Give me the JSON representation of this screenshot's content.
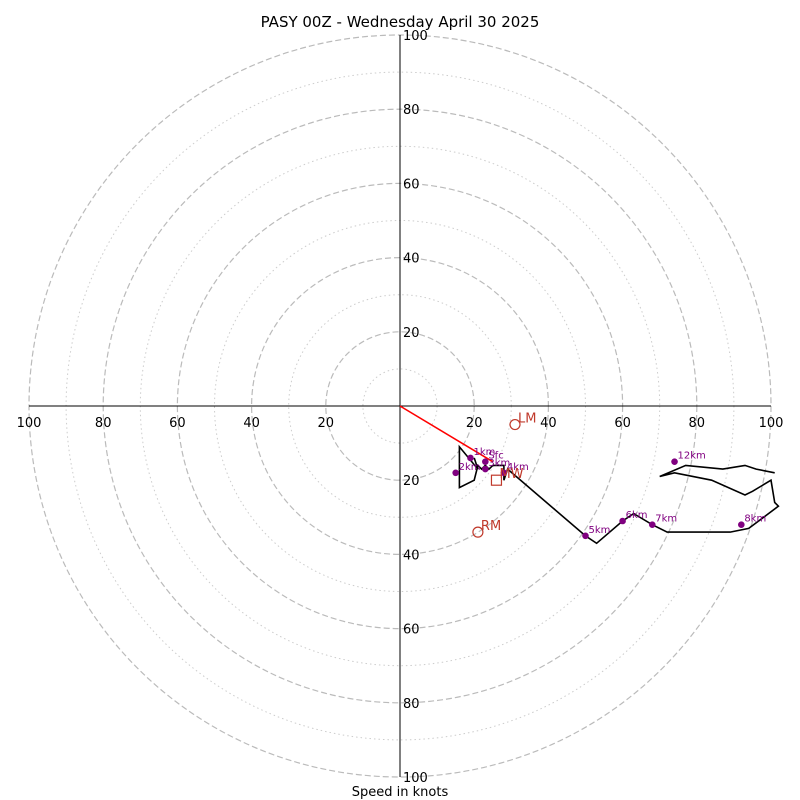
{
  "chart_data": {
    "type": "hodograph",
    "title": "PASY 00Z - Wednesday April 30 2025",
    "xlabel": "Speed in knots",
    "ring_ticks": [
      "100",
      "80",
      "60",
      "40",
      "20",
      "20",
      "40",
      "60",
      "80",
      "100"
    ],
    "y_ticks": [
      "100",
      "80",
      "60",
      "40",
      "20",
      "20",
      "40",
      "60",
      "80",
      "100"
    ],
    "rings_major": [
      20,
      40,
      60,
      80,
      100
    ],
    "rings_minor": [
      10,
      30,
      50,
      70,
      90
    ],
    "xlim": [
      -100,
      100
    ],
    "ylim": [
      -100,
      100
    ],
    "hodograph_line": [
      [
        20,
        -14
      ],
      [
        21,
        -17
      ],
      [
        16,
        -11
      ],
      [
        16,
        -19
      ],
      [
        16,
        -22
      ],
      [
        20,
        -20
      ],
      [
        21,
        -16
      ],
      [
        22,
        -17
      ],
      [
        23,
        -16
      ],
      [
        24,
        -17
      ],
      [
        25,
        -16
      ],
      [
        28,
        -16
      ],
      [
        28,
        -20
      ],
      [
        29,
        -17
      ],
      [
        50,
        -35
      ],
      [
        53,
        -37
      ],
      [
        60,
        -31
      ],
      [
        63,
        -29
      ],
      [
        68,
        -32
      ],
      [
        72,
        -34
      ],
      [
        89,
        -34
      ],
      [
        94,
        -33
      ],
      [
        102,
        -27
      ],
      [
        101,
        -26
      ],
      [
        100,
        -20
      ],
      [
        95,
        -23
      ],
      [
        93,
        -24
      ],
      [
        84,
        -20
      ],
      [
        74,
        -18
      ],
      [
        70,
        -19
      ],
      [
        77,
        -16
      ],
      [
        87,
        -17
      ],
      [
        93,
        -16
      ],
      [
        96,
        -17
      ],
      [
        101,
        -18
      ]
    ],
    "height_markers": [
      {
        "label": "Sfc",
        "u": 23,
        "v": -15
      },
      {
        "label": "1km",
        "u": 19,
        "v": -14
      },
      {
        "label": "2km",
        "u": 15,
        "v": -18
      },
      {
        "label": "3km",
        "u": 23,
        "v": -17
      },
      {
        "label": "4km",
        "u": 28,
        "v": -18
      },
      {
        "label": "5km",
        "u": 50,
        "v": -35
      },
      {
        "label": "6km",
        "u": 60,
        "v": -31
      },
      {
        "label": "7km",
        "u": 68,
        "v": -32
      },
      {
        "label": "8km",
        "u": 92,
        "v": -32
      },
      {
        "label": "12km",
        "u": 74,
        "v": -15
      }
    ],
    "motion_markers": [
      {
        "label": "LM",
        "u": 31,
        "v": -5,
        "shape": "circle"
      },
      {
        "label": "RM",
        "u": 21,
        "v": -34,
        "shape": "circle"
      },
      {
        "label": "MW",
        "u": 26,
        "v": -20,
        "shape": "square"
      }
    ],
    "shear_vector": {
      "from": [
        0,
        0
      ],
      "to": [
        25,
        -15
      ]
    },
    "colors": {
      "hodograph": "#000000",
      "markers": "#800080",
      "motion": "#c0392b",
      "shear": "#ff0000",
      "rings_major": "#bbbbbb",
      "rings_minor": "#cccccc"
    }
  }
}
